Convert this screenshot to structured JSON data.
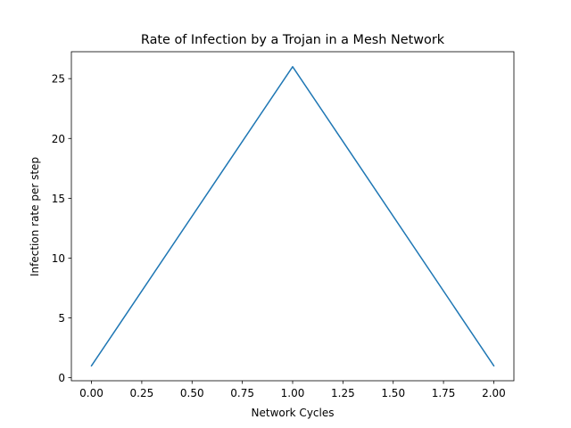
{
  "chart_data": {
    "type": "line",
    "title": "Rate of Infection by a Trojan in a Mesh Network",
    "xlabel": "Network Cycles",
    "ylabel": "Infection rate per step",
    "x": [
      0,
      1,
      2
    ],
    "series": [
      {
        "values": [
          1,
          26,
          1
        ],
        "color": "#1f77b4"
      }
    ],
    "xlim": [
      -0.1,
      2.1
    ],
    "ylim": [
      -0.25,
      27.25
    ],
    "xticks": [
      0,
      0.25,
      0.5,
      0.75,
      1.0,
      1.25,
      1.5,
      1.75,
      2.0
    ],
    "xtick_labels": [
      "0.00",
      "0.25",
      "0.50",
      "0.75",
      "1.00",
      "1.25",
      "1.50",
      "1.75",
      "2.00"
    ],
    "yticks": [
      0,
      5,
      10,
      15,
      20,
      25
    ],
    "ytick_labels": [
      "0",
      "5",
      "10",
      "15",
      "20",
      "25"
    ],
    "grid": false,
    "legend": "none"
  }
}
